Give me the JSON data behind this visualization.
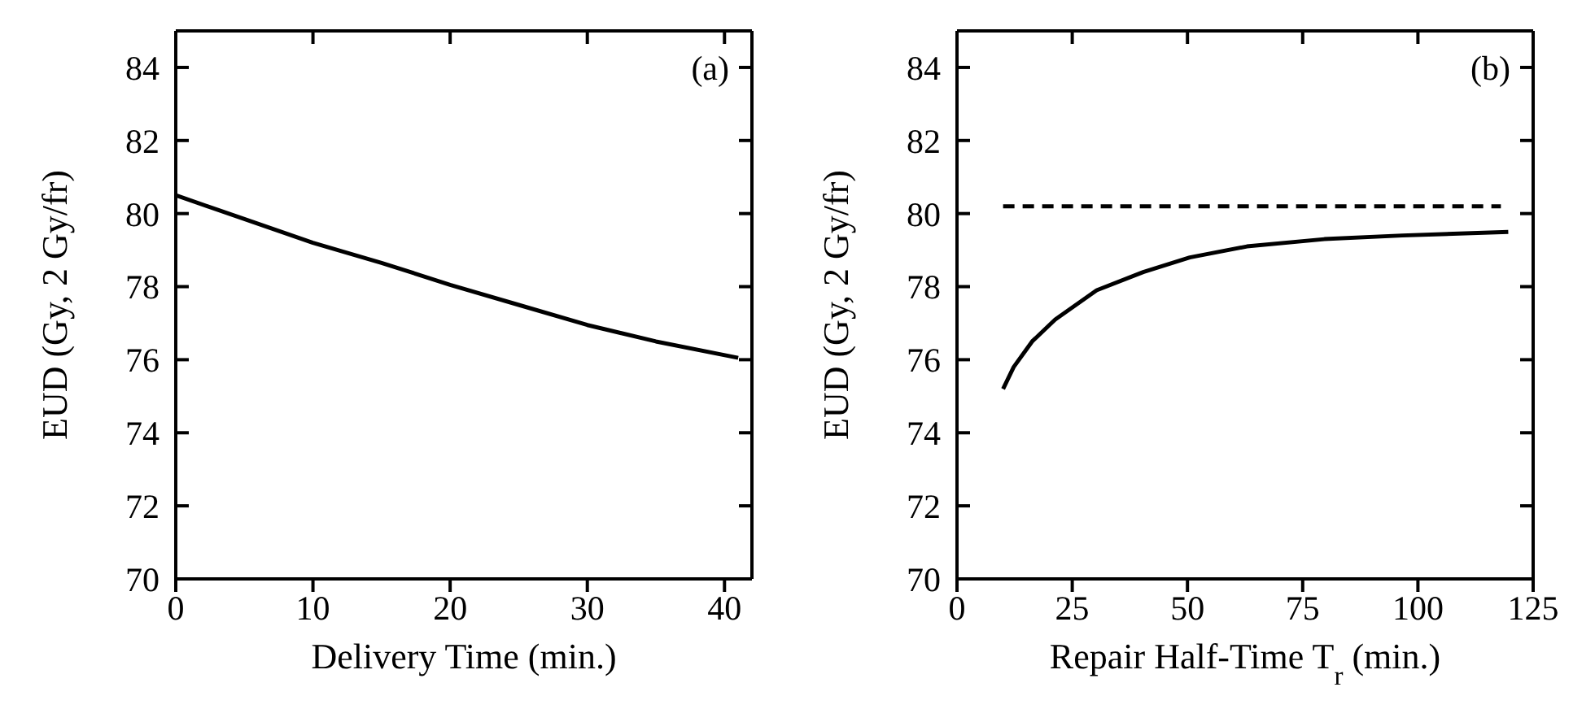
{
  "chart_data": [
    {
      "type": "line",
      "annotations": [
        "(a)"
      ],
      "xlabel": "Delivery Time (min.)",
      "ylabel": "EUD (Gy, 2 Gy/fr)",
      "xlim": [
        0,
        42
      ],
      "xticks": [
        0,
        10,
        20,
        30,
        40
      ],
      "ylim": [
        70,
        85
      ],
      "yticks": [
        70,
        72,
        74,
        76,
        78,
        80,
        82,
        84
      ],
      "marker": "none",
      "series": [
        {
          "color": "#000000",
          "line_style": "solid",
          "x": [
            0,
            5,
            10,
            15,
            20,
            25,
            30,
            35,
            41
          ],
          "values": [
            80.5,
            79.85,
            79.2,
            78.65,
            78.05,
            77.5,
            76.95,
            76.5,
            76.05
          ]
        }
      ]
    },
    {
      "type": "line",
      "annotations": [
        "(b)"
      ],
      "xlabel": "Repair Half-Time T$_{r}$ (min.)",
      "ylabel": "EUD (Gy, 2 Gy/fr)",
      "xlim": [
        0,
        125
      ],
      "xticks": [
        0,
        25,
        50,
        75,
        100,
        125
      ],
      "ylim": [
        70,
        85
      ],
      "yticks": [
        70,
        72,
        74,
        76,
        78,
        80,
        82,
        84
      ],
      "marker": "none",
      "series": [
        {
          "color": "#000000",
          "line_style": "dashed",
          "x": [
            10,
            118
          ],
          "values": [
            80.2,
            80.2
          ]
        },
        {
          "color": "#000000",
          "line_style": "solid",
          "x": [
            10,
            12.3,
            16.3,
            21.3,
            30.3,
            40.4,
            50.5,
            62.9,
            79.7,
            96.6,
            119.6
          ],
          "values": [
            75.2,
            75.8,
            76.5,
            77.1,
            77.9,
            78.4,
            78.8,
            79.1,
            79.3,
            79.4,
            79.5
          ]
        }
      ]
    }
  ]
}
